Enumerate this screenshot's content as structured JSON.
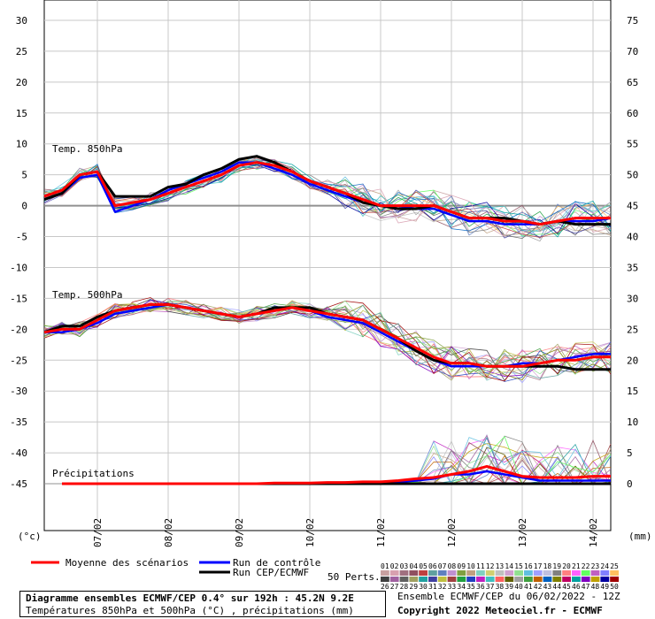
{
  "header": {
    "title": "Diagramme ensembles ECMWF/CEP 0.4° sur 192h : 45.2N 9.2E",
    "subtitle": "Températures 850hPa et 500hPa (°C) , précipitations (mm)",
    "run_info": "Ensemble ECMWF/CEP du 06/02/2022 - 12Z",
    "copyright": "Copyright 2022 Meteociel.fr - ECMWF"
  },
  "legend": {
    "mean_label": "Moyenne des scénarios",
    "control_label": "Run de contrôle",
    "oper_label": "Run CEP/ECMWF",
    "perts_label": "50 Perts.",
    "member_numbers_top": [
      "01",
      "02",
      "03",
      "04",
      "05",
      "06",
      "07",
      "08",
      "09",
      "10",
      "11",
      "12",
      "13",
      "14",
      "15",
      "16",
      "17",
      "18",
      "19",
      "20",
      "21",
      "22",
      "23",
      "24",
      "25"
    ],
    "member_numbers_bottom": [
      "26",
      "27",
      "28",
      "29",
      "30",
      "31",
      "32",
      "33",
      "34",
      "35",
      "36",
      "37",
      "38",
      "39",
      "40",
      "41",
      "42",
      "43",
      "44",
      "45",
      "46",
      "47",
      "48",
      "49",
      "50"
    ],
    "member_colors_top": [
      "#c8a0a0",
      "#d8a0b0",
      "#a07080",
      "#905060",
      "#c04040",
      "#60a0a0",
      "#6080c0",
      "#c090d0",
      "#80a040",
      "#c0a080",
      "#80d0c0",
      "#d0d070",
      "#c0c0c0",
      "#d0a0d0",
      "#90e090",
      "#60c0e0",
      "#a0a0ff",
      "#c0c0e0",
      "#808080",
      "#ff8080",
      "#ff60ff",
      "#60ff60",
      "#c060c0",
      "#8080ff",
      "#ffc060"
    ],
    "member_colors_bottom": [
      "#404040",
      "#a060a0",
      "#606060",
      "#a0a060",
      "#20a0a0",
      "#4040a0",
      "#c0c040",
      "#a04040",
      "#20a040",
      "#2040c0",
      "#c020c0",
      "#40c0c0",
      "#ff6060",
      "#606000",
      "#a0a0a0",
      "#40a040",
      "#c06000",
      "#0060c0",
      "#808000",
      "#c00060",
      "#00a0a0",
      "#8000c0",
      "#c0a000",
      "#0000a0",
      "#a00000"
    ],
    "colors": {
      "mean": "#ff0000",
      "control": "#0000ff",
      "oper": "#000000"
    }
  },
  "chart_data": {
    "type": "line",
    "left_axis": {
      "unit_label": "(°c)",
      "ticks": [
        30,
        25,
        20,
        15,
        10,
        5,
        0,
        -5,
        -10,
        -15,
        -20,
        -25,
        -30,
        -35,
        -40,
        -45
      ]
    },
    "right_axis": {
      "unit_label": "(mm)",
      "ticks": [
        75,
        70,
        65,
        60,
        55,
        50,
        45,
        40,
        35,
        30,
        25,
        20,
        15,
        10,
        5,
        0
      ]
    },
    "x_labels": [
      "07/02",
      "08/02",
      "09/02",
      "10/02",
      "11/02",
      "12/02",
      "13/02",
      "14/02"
    ],
    "x_label_hours": [
      30,
      54,
      78,
      102,
      126,
      150,
      174,
      198
    ],
    "xlim_hours": [
      12,
      204
    ],
    "grid": true,
    "panels": [
      {
        "label": "Temp. 850hPa"
      },
      {
        "label": "Temp. 500hPa"
      },
      {
        "label": "Précipitations"
      }
    ],
    "series": [
      {
        "role": "mean",
        "panel": 0,
        "x": [
          12,
          18,
          24,
          30,
          36,
          42,
          48,
          54,
          60,
          66,
          72,
          78,
          84,
          90,
          96,
          102,
          108,
          114,
          120,
          126,
          132,
          138,
          144,
          150,
          156,
          162,
          168,
          174,
          180,
          186,
          192,
          198,
          204
        ],
        "y": [
          1.5,
          2.5,
          5,
          5.5,
          0,
          0.5,
          1,
          2,
          3,
          4,
          5,
          6.5,
          7,
          6.5,
          5.5,
          4,
          3,
          2,
          1,
          0,
          0,
          0,
          0,
          -1,
          -2,
          -2,
          -2.5,
          -2.5,
          -3,
          -2.5,
          -2,
          -2,
          -2
        ]
      },
      {
        "role": "control",
        "panel": 0,
        "x": [
          12,
          18,
          24,
          30,
          36,
          42,
          48,
          54,
          60,
          66,
          72,
          78,
          84,
          90,
          96,
          102,
          108,
          114,
          120,
          126,
          132,
          138,
          144,
          150,
          156,
          162,
          168,
          174,
          180,
          186,
          192,
          198,
          204
        ],
        "y": [
          1,
          2,
          4.5,
          5,
          -1,
          0,
          1,
          2.5,
          3.5,
          4.5,
          5.5,
          7,
          7,
          6,
          5,
          3.5,
          2.5,
          1.5,
          0.5,
          0,
          0,
          -0.5,
          -0.5,
          -1.5,
          -2.5,
          -2.5,
          -3,
          -3,
          -3,
          -2.5,
          -2.5,
          -2.5,
          -2
        ]
      },
      {
        "role": "oper",
        "panel": 0,
        "x": [
          12,
          18,
          24,
          30,
          36,
          42,
          48,
          54,
          60,
          66,
          72,
          78,
          84,
          90,
          96,
          102,
          108,
          114,
          120,
          126,
          132,
          138,
          144,
          150,
          156,
          162,
          168,
          174,
          180,
          186,
          192,
          198,
          204
        ],
        "y": [
          1,
          2,
          5,
          5.5,
          1.5,
          1.5,
          1.5,
          3,
          3.5,
          5,
          6,
          7.5,
          8,
          7,
          5.5,
          4,
          3,
          2,
          0.5,
          0,
          -0.5,
          -0.5,
          0,
          -1,
          -2,
          -2,
          -2,
          -2.5,
          -3,
          -2.5,
          -3,
          -3,
          -3
        ]
      },
      {
        "role": "mean",
        "panel": 1,
        "x": [
          12,
          18,
          24,
          30,
          36,
          42,
          48,
          54,
          60,
          66,
          72,
          78,
          84,
          90,
          96,
          102,
          108,
          114,
          120,
          126,
          132,
          138,
          144,
          150,
          156,
          162,
          168,
          174,
          180,
          186,
          192,
          198,
          204
        ],
        "y": [
          -20.5,
          -20,
          -20,
          -18.5,
          -17,
          -16.5,
          -16,
          -16,
          -16.5,
          -17,
          -17.5,
          -18,
          -17.5,
          -17,
          -16.5,
          -17,
          -17.5,
          -18,
          -18.5,
          -20,
          -21.5,
          -23,
          -24.5,
          -25.5,
          -25.5,
          -26,
          -26,
          -26,
          -25.5,
          -25,
          -25,
          -24.5,
          -24.5
        ]
      },
      {
        "role": "control",
        "panel": 1,
        "x": [
          12,
          18,
          24,
          30,
          36,
          42,
          48,
          54,
          60,
          66,
          72,
          78,
          84,
          90,
          96,
          102,
          108,
          114,
          120,
          126,
          132,
          138,
          144,
          150,
          156,
          162,
          168,
          174,
          180,
          186,
          192,
          198,
          204
        ],
        "y": [
          -20.5,
          -20.5,
          -20,
          -19,
          -17.5,
          -17,
          -16.5,
          -16,
          -16.5,
          -17,
          -17.5,
          -18,
          -17.5,
          -17,
          -16.5,
          -17,
          -18,
          -18.5,
          -19,
          -20.5,
          -22,
          -23.5,
          -25,
          -26,
          -26,
          -26,
          -26,
          -25.5,
          -25.5,
          -25,
          -24.5,
          -24,
          -24
        ]
      },
      {
        "role": "oper",
        "panel": 1,
        "x": [
          12,
          18,
          24,
          30,
          36,
          42,
          48,
          54,
          60,
          66,
          72,
          78,
          84,
          90,
          96,
          102,
          108,
          114,
          120,
          126,
          132,
          138,
          144,
          150,
          156,
          162,
          168,
          174,
          180,
          186,
          192,
          198,
          204
        ],
        "y": [
          -20.5,
          -19.5,
          -19.5,
          -18,
          -17,
          -16.5,
          -16,
          -16,
          -16.5,
          -17,
          -17.5,
          -18,
          -17.5,
          -16.5,
          -16.5,
          -16.5,
          -17.5,
          -18,
          -18.5,
          -20,
          -21.5,
          -23.5,
          -25,
          -25.5,
          -25.5,
          -26,
          -26,
          -26,
          -26,
          -26,
          -26.5,
          -26.5,
          -26.5
        ]
      },
      {
        "role": "mean",
        "panel": 2,
        "unit": "mm",
        "x": [
          18,
          24,
          30,
          36,
          42,
          48,
          54,
          60,
          66,
          72,
          78,
          84,
          90,
          96,
          102,
          108,
          114,
          120,
          126,
          132,
          138,
          144,
          150,
          156,
          162,
          168,
          174,
          180,
          186,
          192,
          198,
          204
        ],
        "y": [
          0,
          0,
          0,
          0,
          0,
          0,
          0,
          0,
          0,
          0,
          0,
          0,
          0.1,
          0.1,
          0.1,
          0.2,
          0.2,
          0.3,
          0.3,
          0.5,
          0.8,
          1,
          1.5,
          2,
          2.8,
          2,
          1.2,
          1,
          1,
          1,
          1.2,
          1.2
        ]
      },
      {
        "role": "control",
        "panel": 2,
        "unit": "mm",
        "x": [
          18,
          24,
          30,
          36,
          42,
          48,
          54,
          60,
          66,
          72,
          78,
          84,
          90,
          96,
          102,
          108,
          114,
          120,
          126,
          132,
          138,
          144,
          150,
          156,
          162,
          168,
          174,
          180,
          186,
          192,
          198,
          204
        ],
        "y": [
          0,
          0,
          0,
          0,
          0,
          0,
          0,
          0,
          0,
          0,
          0,
          0,
          0,
          0.1,
          0.1,
          0.1,
          0.2,
          0.2,
          0.2,
          0.3,
          0.5,
          0.8,
          1.5,
          1.5,
          2,
          1.5,
          1,
          0.5,
          0.5,
          0.5,
          0.5,
          0.5
        ]
      },
      {
        "role": "oper",
        "panel": 2,
        "unit": "mm",
        "x": [
          18,
          24,
          30,
          36,
          42,
          48,
          54,
          60,
          66,
          72,
          78,
          84,
          90,
          96,
          102,
          108,
          114,
          120,
          126,
          132,
          138,
          144,
          150,
          156,
          162,
          168,
          174,
          180,
          186,
          192,
          198,
          204
        ],
        "y": [
          0,
          0,
          0,
          0,
          0,
          0,
          0,
          0,
          0,
          0,
          0,
          0,
          0,
          0,
          0,
          0,
          0,
          0,
          0,
          0,
          0,
          0,
          0,
          0,
          0,
          0,
          0,
          0,
          0,
          0,
          0,
          0
        ]
      }
    ]
  }
}
